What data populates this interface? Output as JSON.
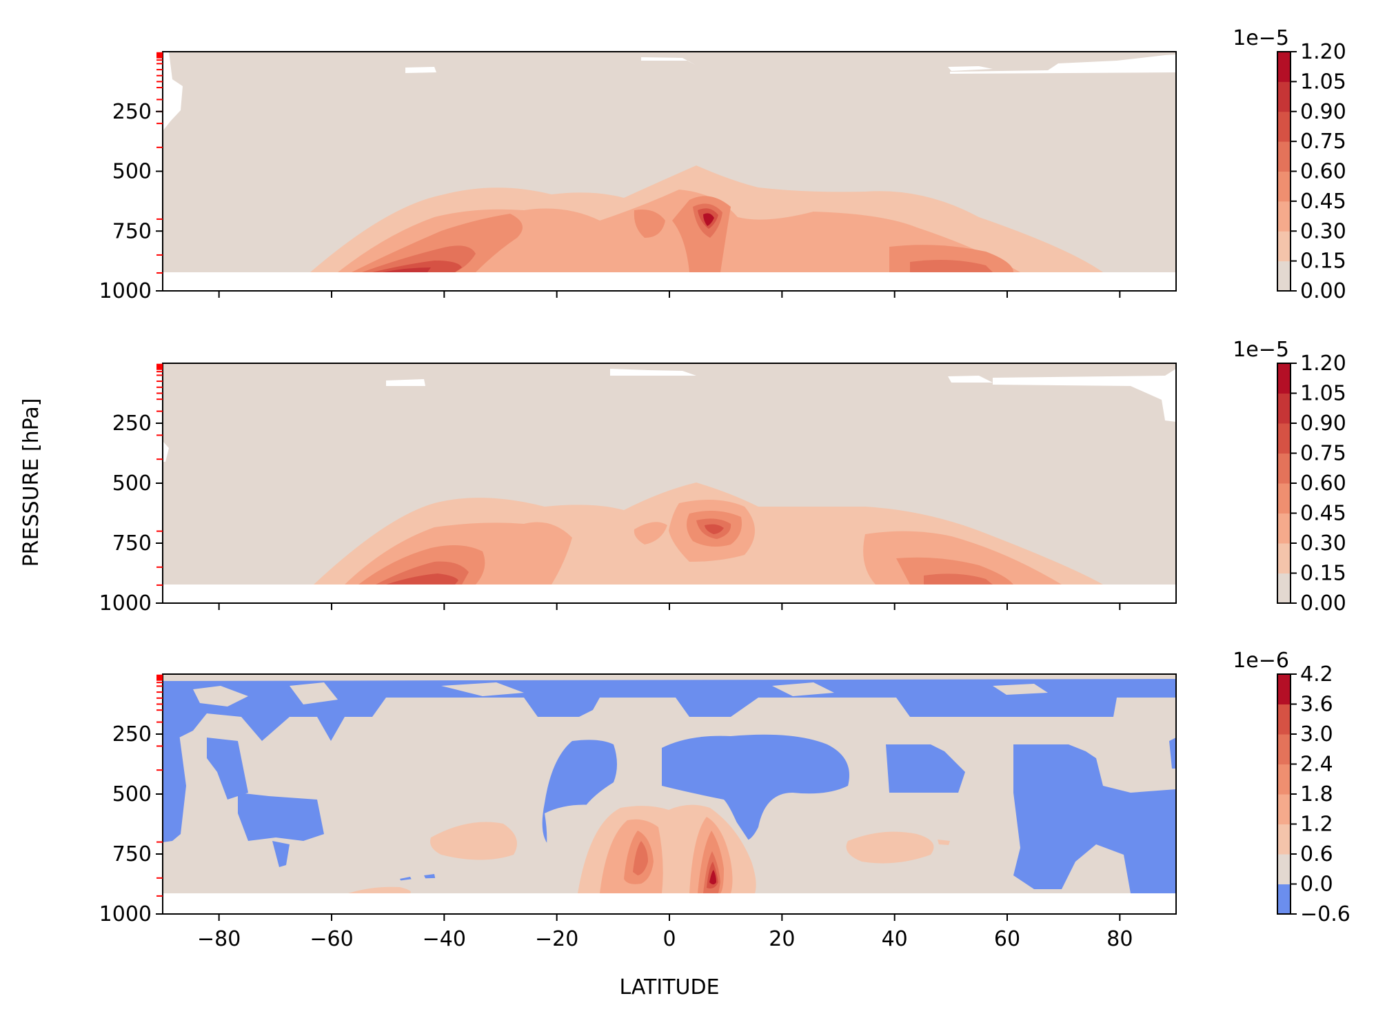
{
  "figure": {
    "ylabel": "PRESSURE [hPa]",
    "xlabel": "LATITUDE"
  },
  "chart_data": [
    {
      "type": "heatmap",
      "subtype": "filled-contour",
      "xlabel": "",
      "ylabel": "",
      "xlim": [
        -90,
        90
      ],
      "ylim": [
        1000,
        0
      ],
      "xticks": [
        -80,
        -60,
        -40,
        -20,
        0,
        20,
        40,
        60,
        80
      ],
      "xtick_labels_shown": false,
      "yticks": [
        250,
        500,
        750,
        1000
      ],
      "colorbar": {
        "offset_label": "1e−5",
        "levels": [
          0.0,
          0.15,
          0.3,
          0.45,
          0.6,
          0.75,
          0.9,
          1.05,
          1.2
        ],
        "tick_labels": [
          "0.00",
          "0.15",
          "0.30",
          "0.45",
          "0.60",
          "0.75",
          "0.90",
          "1.05",
          "1.20"
        ],
        "colors": [
          "#e3d8d0",
          "#f4c4ab",
          "#f5aa8c",
          "#ef8f70",
          "#e4735a",
          "#d65244",
          "#c63536",
          "#b40f26"
        ]
      },
      "data_mask_bottom_pressure": 925,
      "features": [
        {
          "lat": -45,
          "p": 910,
          "peak": 1.08,
          "note": "southern mid-latitude low-level maximum"
        },
        {
          "lat": -5,
          "p": 700,
          "peak": 0.62
        },
        {
          "lat": 8,
          "p": 700,
          "peak": 1.15,
          "note": "equatorial maximum"
        },
        {
          "lat": 8,
          "p": 880,
          "peak": 0.7
        },
        {
          "lat": 48,
          "p": 870,
          "peak": 0.72,
          "note": "northern mid-latitude maximum"
        },
        {
          "lat": 35,
          "p": 710,
          "peak": 0.5
        }
      ]
    },
    {
      "type": "heatmap",
      "subtype": "filled-contour",
      "xlabel": "",
      "ylabel": "",
      "xlim": [
        -90,
        90
      ],
      "ylim": [
        1000,
        0
      ],
      "xticks": [
        -80,
        -60,
        -40,
        -20,
        0,
        20,
        40,
        60,
        80
      ],
      "xtick_labels_shown": false,
      "yticks": [
        250,
        500,
        750,
        1000
      ],
      "colorbar": {
        "offset_label": "1e−5",
        "levels": [
          0.0,
          0.15,
          0.3,
          0.45,
          0.6,
          0.75,
          0.9,
          1.05,
          1.2
        ],
        "tick_labels": [
          "0.00",
          "0.15",
          "0.30",
          "0.45",
          "0.60",
          "0.75",
          "0.90",
          "1.05",
          "1.20"
        ],
        "colors": [
          "#e3d8d0",
          "#f4c4ab",
          "#f5aa8c",
          "#ef8f70",
          "#e4735a",
          "#d65244",
          "#c63536",
          "#b40f26"
        ]
      },
      "data_mask_bottom_pressure": 925,
      "features": [
        {
          "lat": -42,
          "p": 900,
          "peak": 0.92,
          "note": "southern mid-latitude low-level maximum"
        },
        {
          "lat": -5,
          "p": 700,
          "peak": 0.55
        },
        {
          "lat": 8,
          "p": 700,
          "peak": 1.0,
          "note": "equatorial maximum"
        },
        {
          "lat": 48,
          "p": 870,
          "peak": 0.65,
          "note": "northern mid-latitude maximum"
        }
      ]
    },
    {
      "type": "heatmap",
      "subtype": "filled-contour",
      "xlabel": "LATITUDE",
      "ylabel": "",
      "xlim": [
        -90,
        90
      ],
      "ylim": [
        1000,
        0
      ],
      "xticks": [
        -80,
        -60,
        -40,
        -20,
        0,
        20,
        40,
        60,
        80
      ],
      "xtick_labels": [
        "−80",
        "−60",
        "−40",
        "−20",
        "0",
        "20",
        "40",
        "60",
        "80"
      ],
      "yticks": [
        250,
        500,
        750,
        1000
      ],
      "colorbar": {
        "offset_label": "1e−6",
        "levels": [
          -0.6,
          0.0,
          0.6,
          1.2,
          1.8,
          2.4,
          3.0,
          3.6,
          4.2
        ],
        "tick_labels": [
          "−0.6",
          "0.0",
          "0.6",
          "1.2",
          "1.8",
          "2.4",
          "3.0",
          "3.6",
          "4.2"
        ],
        "colors": [
          "#6b8eee",
          "#e3d8d0",
          "#f4c4ab",
          "#f5aa8c",
          "#ef8f70",
          "#e4735a",
          "#d65244",
          "#b40f26"
        ]
      },
      "data_mask_bottom_pressure": 925,
      "features": [
        {
          "lat": -4,
          "p": 740,
          "peak": 2.5,
          "note": "equatorial positive core"
        },
        {
          "lat": 8,
          "p": 850,
          "peak": 4.0,
          "note": "equatorial positive maximum"
        },
        {
          "lat": -40,
          "p": 700,
          "peak": 0.8
        },
        {
          "lat": 40,
          "p": 720,
          "peak": 0.8
        },
        {
          "lat": 10,
          "p": 450,
          "peak": -0.4,
          "note": "negative region above equator"
        },
        {
          "lat": 75,
          "p": 650,
          "peak": -0.4,
          "note": "negative region at high northern latitudes"
        }
      ]
    }
  ]
}
